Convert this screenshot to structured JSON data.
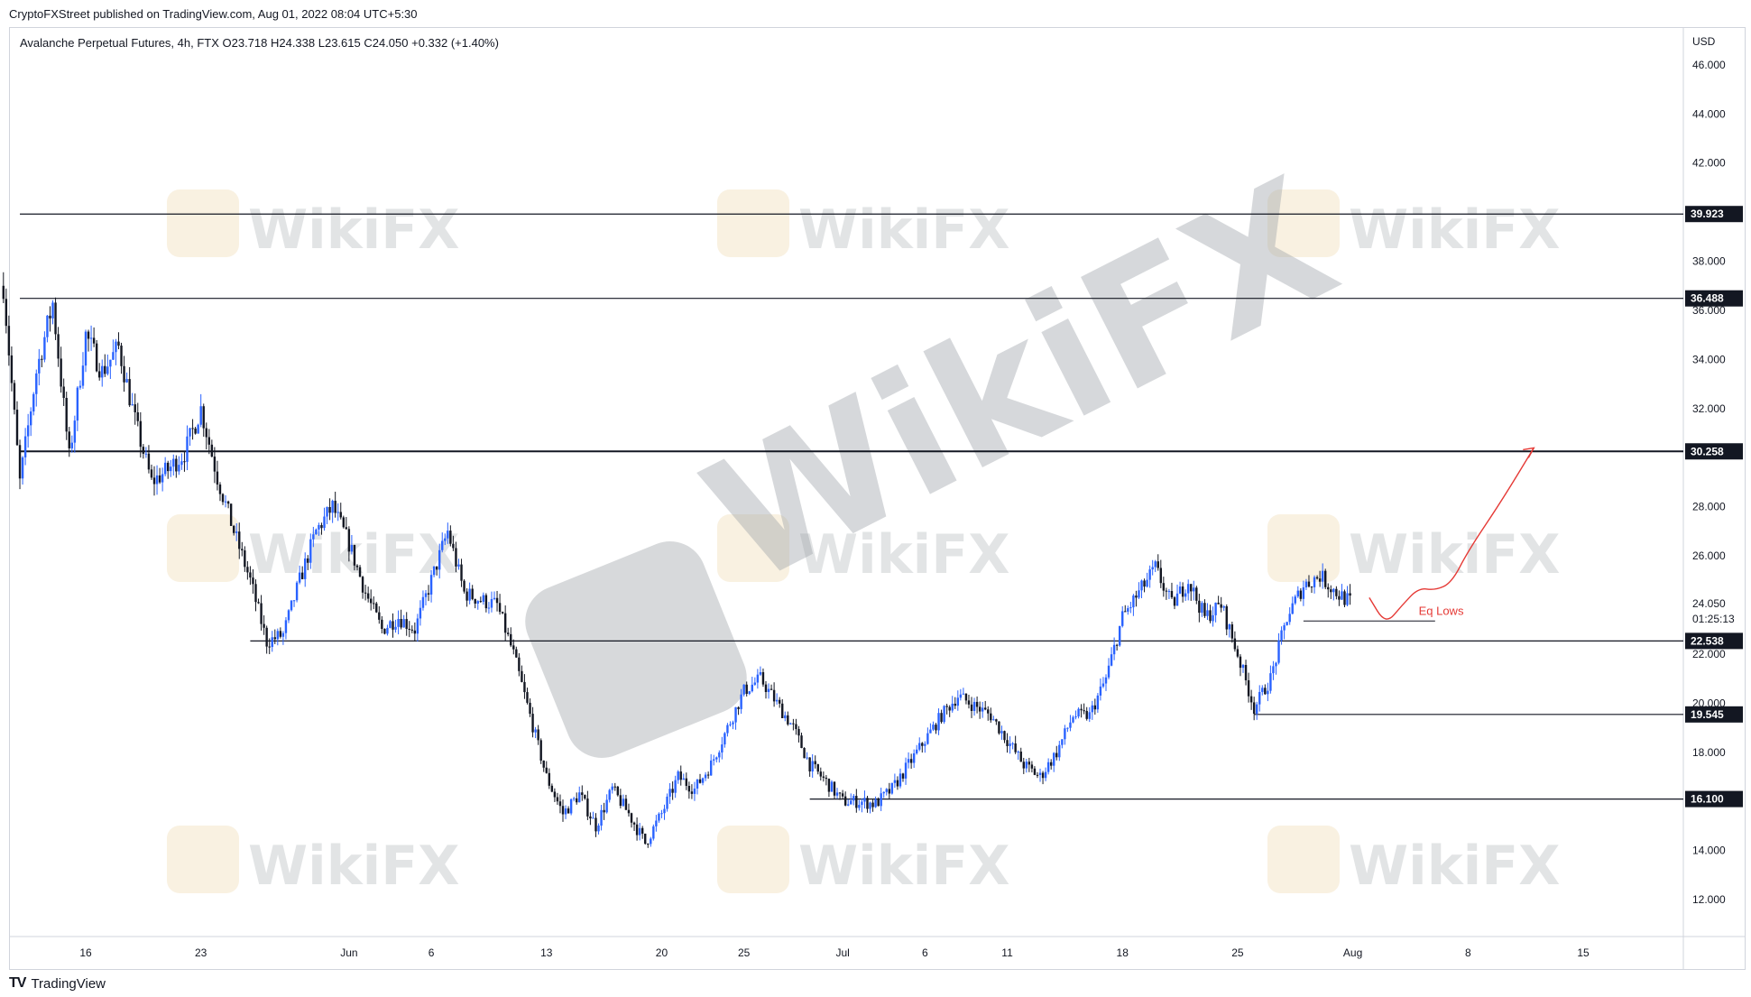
{
  "header": {
    "published": "CryptoFXStreet published on TradingView.com, Aug 01, 2022 08:04 UTC+5:30",
    "symbol_info": "Avalanche Perpetual Futures, 4h, FTX  O23.718  H24.338  L23.615  C24.050  +0.332 (+1.40%)"
  },
  "footer": {
    "brand": "TradingView",
    "logo": "TV"
  },
  "watermark": {
    "text": "WikiFX"
  },
  "chart_data": {
    "type": "candlestick",
    "currency_label": "USD",
    "y_ticks": [
      "46.000",
      "44.000",
      "42.000",
      "38.000",
      "36.000",
      "34.000",
      "32.000",
      "28.000",
      "26.000",
      "22.000",
      "20.000",
      "18.000",
      "14.000",
      "12.000"
    ],
    "y_tick_values": [
      46,
      44,
      42,
      38,
      36,
      34,
      32,
      28,
      26,
      22,
      20,
      18,
      14,
      12
    ],
    "ylim": [
      10.5,
      47.5
    ],
    "x_ticks": [
      "16",
      "23",
      "Jun",
      "6",
      "13",
      "20",
      "25",
      "Jul",
      "6",
      "11",
      "18",
      "25",
      "Aug",
      "8",
      "15"
    ],
    "x_tick_values": [
      "2022-05-16",
      "2022-05-23",
      "2022-06-01",
      "2022-06-06",
      "2022-06-13",
      "2022-06-20",
      "2022-06-25",
      "2022-07-01",
      "2022-07-06",
      "2022-07-11",
      "2022-07-18",
      "2022-07-25",
      "2022-08-01",
      "2022-08-08",
      "2022-08-15"
    ],
    "last_price": {
      "value": 24.05,
      "label": "24.050",
      "countdown": "01:25:13"
    },
    "levels": [
      {
        "value": 39.923,
        "label": "39.923",
        "start": "2022-05-12"
      },
      {
        "value": 36.488,
        "label": "36.488",
        "start": "2022-05-12"
      },
      {
        "value": 30.258,
        "label": "30.258",
        "start": "2022-05-12"
      },
      {
        "value": 22.538,
        "label": "22.538",
        "start": "2022-05-26"
      },
      {
        "value": 19.545,
        "label": "19.545",
        "start": "2022-07-26"
      },
      {
        "value": 16.1,
        "label": "16.100",
        "start": "2022-06-29"
      }
    ],
    "eq_lows": {
      "label": "Eq Lows",
      "value": 23.35,
      "start": "2022-07-29",
      "end": "2022-08-06"
    },
    "projection": [
      [
        "2022-08-02",
        24.3
      ],
      [
        "2022-08-03",
        23.2
      ],
      [
        "2022-08-04",
        24.0
      ],
      [
        "2022-08-05",
        24.7
      ],
      [
        "2022-08-06",
        24.6
      ],
      [
        "2022-08-07",
        24.9
      ],
      [
        "2022-08-08",
        26.2
      ],
      [
        "2022-08-10",
        28.2
      ],
      [
        "2022-08-12",
        30.4
      ]
    ],
    "path": [
      [
        "2022-05-11",
        37.0
      ],
      [
        "2022-05-12",
        29.0
      ],
      [
        "2022-05-13",
        33.5
      ],
      [
        "2022-05-14",
        36.3
      ],
      [
        "2022-05-15",
        30.0
      ],
      [
        "2022-05-16",
        35.0
      ],
      [
        "2022-05-17",
        33.5
      ],
      [
        "2022-05-18",
        34.5
      ],
      [
        "2022-05-19",
        31.5
      ],
      [
        "2022-05-20",
        29.0
      ],
      [
        "2022-05-21",
        29.5
      ],
      [
        "2022-05-22",
        30.2
      ],
      [
        "2022-05-23",
        32.0
      ],
      [
        "2022-05-24",
        29.2
      ],
      [
        "2022-05-25",
        27.0
      ],
      [
        "2022-05-26",
        25.0
      ],
      [
        "2022-05-27",
        22.5
      ],
      [
        "2022-05-28",
        22.8
      ],
      [
        "2022-05-29",
        25.0
      ],
      [
        "2022-05-30",
        27.0
      ],
      [
        "2022-05-31",
        28.0
      ],
      [
        "2022-06-01",
        26.5
      ],
      [
        "2022-06-02",
        24.5
      ],
      [
        "2022-06-03",
        23.0
      ],
      [
        "2022-06-04",
        23.5
      ],
      [
        "2022-06-05",
        23.0
      ],
      [
        "2022-06-06",
        25.0
      ],
      [
        "2022-06-07",
        27.0
      ],
      [
        "2022-06-08",
        24.5
      ],
      [
        "2022-06-09",
        24.2
      ],
      [
        "2022-06-10",
        24.0
      ],
      [
        "2022-06-11",
        22.0
      ],
      [
        "2022-06-12",
        19.5
      ],
      [
        "2022-06-13",
        17.0
      ],
      [
        "2022-06-14",
        15.5
      ],
      [
        "2022-06-15",
        16.3
      ],
      [
        "2022-06-16",
        15.0
      ],
      [
        "2022-06-17",
        16.5
      ],
      [
        "2022-06-18",
        15.5
      ],
      [
        "2022-06-19",
        14.3
      ],
      [
        "2022-06-20",
        15.5
      ],
      [
        "2022-06-21",
        17.0
      ],
      [
        "2022-06-22",
        16.5
      ],
      [
        "2022-06-23",
        17.5
      ],
      [
        "2022-06-24",
        19.0
      ],
      [
        "2022-06-25",
        20.5
      ],
      [
        "2022-06-26",
        21.0
      ],
      [
        "2022-06-27",
        20.0
      ],
      [
        "2022-06-28",
        19.0
      ],
      [
        "2022-06-29",
        17.5
      ],
      [
        "2022-06-30",
        16.8
      ],
      [
        "2022-07-01",
        16.0
      ],
      [
        "2022-07-02",
        16.0
      ],
      [
        "2022-07-03",
        15.9
      ],
      [
        "2022-07-04",
        16.5
      ],
      [
        "2022-07-05",
        17.5
      ],
      [
        "2022-07-06",
        18.5
      ],
      [
        "2022-07-07",
        19.5
      ],
      [
        "2022-07-08",
        20.3
      ],
      [
        "2022-07-09",
        19.9
      ],
      [
        "2022-07-10",
        19.5
      ],
      [
        "2022-07-11",
        18.5
      ],
      [
        "2022-07-12",
        17.5
      ],
      [
        "2022-07-13",
        17.0
      ],
      [
        "2022-07-14",
        18.0
      ],
      [
        "2022-07-15",
        19.5
      ],
      [
        "2022-07-16",
        19.5
      ],
      [
        "2022-07-17",
        21.0
      ],
      [
        "2022-07-18",
        23.5
      ],
      [
        "2022-07-19",
        24.5
      ],
      [
        "2022-07-20",
        25.5
      ],
      [
        "2022-07-21",
        24.0
      ],
      [
        "2022-07-22",
        25.0
      ],
      [
        "2022-07-23",
        23.5
      ],
      [
        "2022-07-24",
        24.0
      ],
      [
        "2022-07-25",
        22.0
      ],
      [
        "2022-07-26",
        19.8
      ],
      [
        "2022-07-27",
        21.0
      ],
      [
        "2022-07-28",
        23.5
      ],
      [
        "2022-07-29",
        24.8
      ],
      [
        "2022-07-30",
        25.2
      ],
      [
        "2022-07-31",
        24.5
      ],
      [
        "2022-08-01",
        24.05
      ]
    ]
  },
  "colors": {
    "up": "#2962ff",
    "down": "#131722",
    "projection": "#e53935",
    "label_bg": "#131722",
    "axis_text": "#131722",
    "watermark": "#9aa0a6"
  }
}
